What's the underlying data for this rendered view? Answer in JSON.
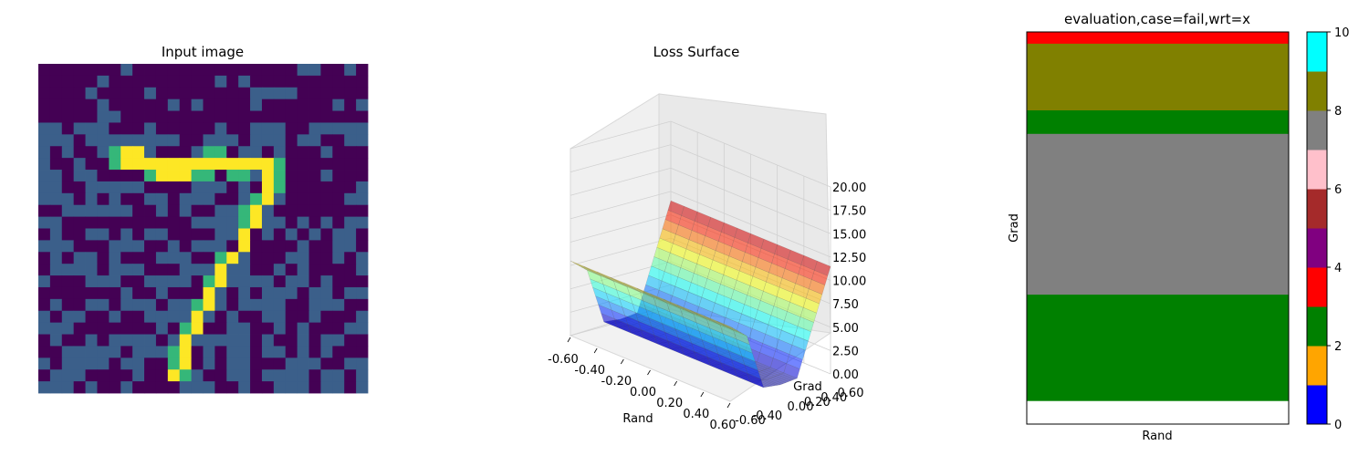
{
  "chart_data": [
    {
      "type": "heatmap",
      "title": "Input image",
      "grid_size": [
        28,
        28
      ],
      "colormap": "viridis",
      "value_levels": [
        "background",
        "mid",
        "stroke-edge",
        "stroke"
      ],
      "colors": {
        "background": "#440154",
        "mid": "#3b5f8a",
        "stroke-edge": "#35b779",
        "stroke": "#fde725"
      }
    },
    {
      "type": "surface3d",
      "title": "Loss Surface",
      "xlabel": "Rand",
      "ylabel": "Grad",
      "x_ticks": [
        "-0.60",
        "-0.40",
        "-0.20",
        "0.00",
        "0.20",
        "0.40",
        "0.60"
      ],
      "y_ticks": [
        "-0.60",
        "-0.40",
        "0.00",
        "0.20",
        "0.40",
        "0.60"
      ],
      "z_ticks": [
        "0.00",
        "2.50",
        "5.00",
        "7.50",
        "10.00",
        "12.50",
        "15.00",
        "17.50",
        "20.00"
      ],
      "xlim": [
        -0.6,
        0.6
      ],
      "ylim": [
        -0.6,
        0.6
      ],
      "zlim": [
        0,
        20
      ],
      "colormap": "jet",
      "profile": [
        {
          "grad": -0.6,
          "loss": 8.0
        },
        {
          "grad": -0.4,
          "loss": 6.5
        },
        {
          "grad": -0.2,
          "loss": 0.5
        },
        {
          "grad": 0.0,
          "loss": 0.3
        },
        {
          "grad": 0.2,
          "loss": 0.5
        },
        {
          "grad": 0.4,
          "loss": 6.0
        },
        {
          "grad": 0.6,
          "loss": 11.5
        }
      ]
    },
    {
      "type": "heatmap",
      "title": "evaluation,case=fail,wrt=x",
      "xlabel": "Rand",
      "ylabel": "Grad",
      "bands_top_to_bottom": [
        {
          "value": 3.5,
          "color": "#ff0000",
          "fraction": 0.03
        },
        {
          "value": 8.5,
          "color": "#808000",
          "fraction": 0.17
        },
        {
          "value": 2.5,
          "color": "#008000",
          "fraction": 0.06
        },
        {
          "value": 7.5,
          "color": "#808080",
          "fraction": 0.41
        },
        {
          "value": 2.5,
          "color": "#008000",
          "fraction": 0.27
        }
      ],
      "colorbar": {
        "ticks": [
          "0",
          "2",
          "4",
          "6",
          "8",
          "10"
        ],
        "range": [
          0,
          10
        ],
        "colors": [
          "#0000ff",
          "#ffa500",
          "#008000",
          "#ff0000",
          "#800080",
          "#a52a2a",
          "#ffc0cb",
          "#808080",
          "#808000",
          "#00ffff"
        ]
      }
    }
  ]
}
